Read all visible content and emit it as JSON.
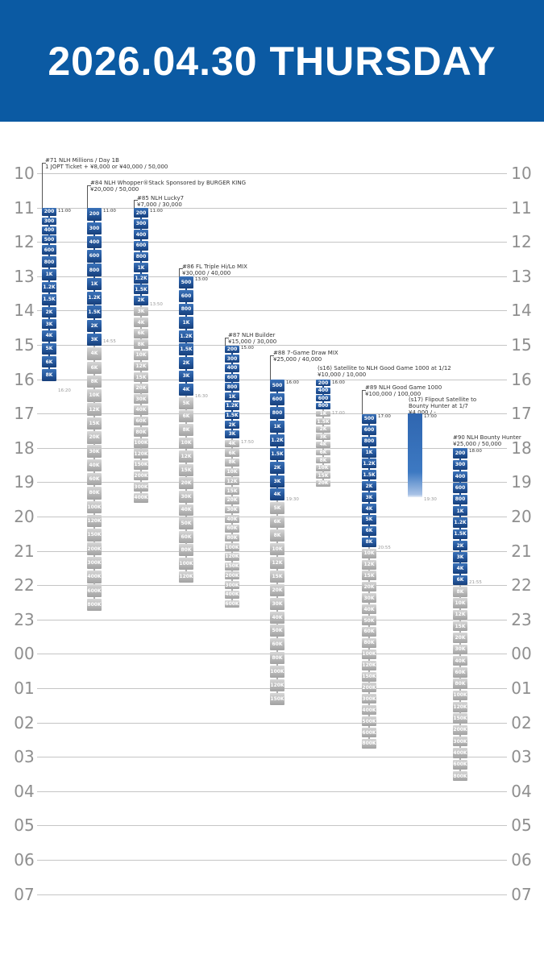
{
  "header": {
    "title": "2026.04.30 THURSDAY",
    "bg_color": "#0b5aa3"
  },
  "hours": [
    "10",
    "11",
    "12",
    "13",
    "14",
    "15",
    "16",
    "17",
    "18",
    "19",
    "20",
    "21",
    "22",
    "23",
    "00",
    "01",
    "02",
    "03",
    "04",
    "05",
    "06",
    "07"
  ],
  "events": [
    {
      "id": "e71",
      "lines": [
        "#71 NLH Millions / Day 1B",
        "1 JOPT Ticket + ¥8,000 or ¥40,000 / 50,000"
      ],
      "start": "11:00",
      "end": "16:20",
      "levels": [
        "200",
        "300",
        "400",
        "500",
        "600",
        "800",
        "1K",
        "1.2K",
        "1.5K",
        "2K",
        "3K",
        "4K",
        "5K",
        "6K",
        "8K"
      ]
    },
    {
      "id": "e84",
      "lines": [
        "#84 NLH Whopper®Stack Sponsored by BURGER KING",
        "¥20,000 / 50,000"
      ],
      "start": "11:00",
      "end": "14:55",
      "levels": [
        "200",
        "300",
        "400",
        "600",
        "800",
        "1K",
        "1.2K",
        "1.5K",
        "2K",
        "3K",
        "4K",
        "6K",
        "8K",
        "10K",
        "12K",
        "15K",
        "20K",
        "30K",
        "40K",
        "60K",
        "80K",
        "100K",
        "120K",
        "150K",
        "200K",
        "300K",
        "400K",
        "600K",
        "800K"
      ]
    },
    {
      "id": "e85",
      "lines": [
        "#85 NLH Lucky7",
        "¥7,000 / 30,000"
      ],
      "start": "11:00",
      "end": "13:50",
      "levels": [
        "200",
        "300",
        "400",
        "600",
        "800",
        "1K",
        "1.2K",
        "1.5K",
        "2K",
        "3K",
        "4K",
        "6K",
        "8K",
        "10K",
        "12K",
        "15K",
        "20K",
        "30K",
        "40K",
        "60K",
        "80K",
        "100K",
        "120K",
        "150K",
        "200K",
        "300K",
        "400K"
      ]
    },
    {
      "id": "e86",
      "lines": [
        "#86 FL Triple Hi/Lo MIX",
        "¥30,000 / 40,000"
      ],
      "start": "13:00",
      "end": "16:30",
      "levels": [
        "500",
        "600",
        "800",
        "1K",
        "1.2K",
        "1.5K",
        "2K",
        "3K",
        "4K",
        "5K",
        "6K",
        "8K",
        "10K",
        "12K",
        "15K",
        "20K",
        "30K",
        "40K",
        "50K",
        "60K",
        "80K",
        "100K",
        "120K"
      ]
    },
    {
      "id": "e87",
      "lines": [
        "#87 NLH Builder",
        "¥15,000 / 30,000"
      ],
      "start": "15:00",
      "end": "17:50",
      "levels": [
        "200",
        "300",
        "400",
        "600",
        "800",
        "1K",
        "1.2K",
        "1.5K",
        "2K",
        "3K",
        "4K",
        "6K",
        "8K",
        "10K",
        "12K",
        "15K",
        "20K",
        "30K",
        "40K",
        "60K",
        "80K",
        "100K",
        "120K",
        "150K",
        "200K",
        "300K",
        "400K",
        "600K"
      ]
    },
    {
      "id": "e88",
      "lines": [
        "#88 7-Game Draw MIX",
        "¥25,000 / 40,000"
      ],
      "start": "16:00",
      "end": "19:30",
      "levels": [
        "500",
        "600",
        "800",
        "1K",
        "1.2K",
        "1.5K",
        "2K",
        "3K",
        "4K",
        "5K",
        "6K",
        "8K",
        "10K",
        "12K",
        "15K",
        "20K",
        "30K",
        "40K",
        "50K",
        "60K",
        "80K",
        "100K",
        "120K",
        "150K"
      ]
    },
    {
      "id": "s16",
      "lines": [
        "(s16) Satellite to NLH Good Game 1000 at 1/12",
        "¥10,000 / 10,000"
      ],
      "start": "16:00",
      "end": "17:00",
      "levels": [
        "200",
        "400",
        "600",
        "800",
        "1K",
        "1.5K",
        "2K",
        "3K",
        "4K",
        "6K",
        "8K",
        "10K",
        "15K",
        "20K"
      ]
    },
    {
      "id": "e89",
      "lines": [
        "#89 NLH Good Game 1000",
        "¥100,000 / 100,000"
      ],
      "start": "17:00",
      "end": "20:55",
      "levels": [
        "500",
        "600",
        "800",
        "1K",
        "1.2K",
        "1.5K",
        "2K",
        "3K",
        "4K",
        "5K",
        "6K",
        "8K",
        "10K",
        "12K",
        "15K",
        "20K",
        "30K",
        "40K",
        "50K",
        "60K",
        "80K",
        "100K",
        "120K",
        "150K",
        "200K",
        "300K",
        "400K",
        "500K",
        "600K",
        "800K"
      ]
    },
    {
      "id": "s17",
      "lines": [
        "(s17) Flipout Satellite to",
        "Bounty Hunter at 1/7",
        "¥4,000 / -"
      ],
      "start": "17:00",
      "end": "19:30",
      "levels": []
    },
    {
      "id": "e90",
      "lines": [
        "#90 NLH Bounty Hunter",
        "¥25,000 / 50,000"
      ],
      "start": "18:00",
      "end": "21:55",
      "levels": [
        "200",
        "300",
        "400",
        "600",
        "800",
        "1K",
        "1.2K",
        "1.5K",
        "2K",
        "3K",
        "4K",
        "6K",
        "8K",
        "10K",
        "12K",
        "15K",
        "20K",
        "30K",
        "40K",
        "60K",
        "80K",
        "100K",
        "120K",
        "150K",
        "200K",
        "300K",
        "400K",
        "600K",
        "800K"
      ]
    }
  ]
}
